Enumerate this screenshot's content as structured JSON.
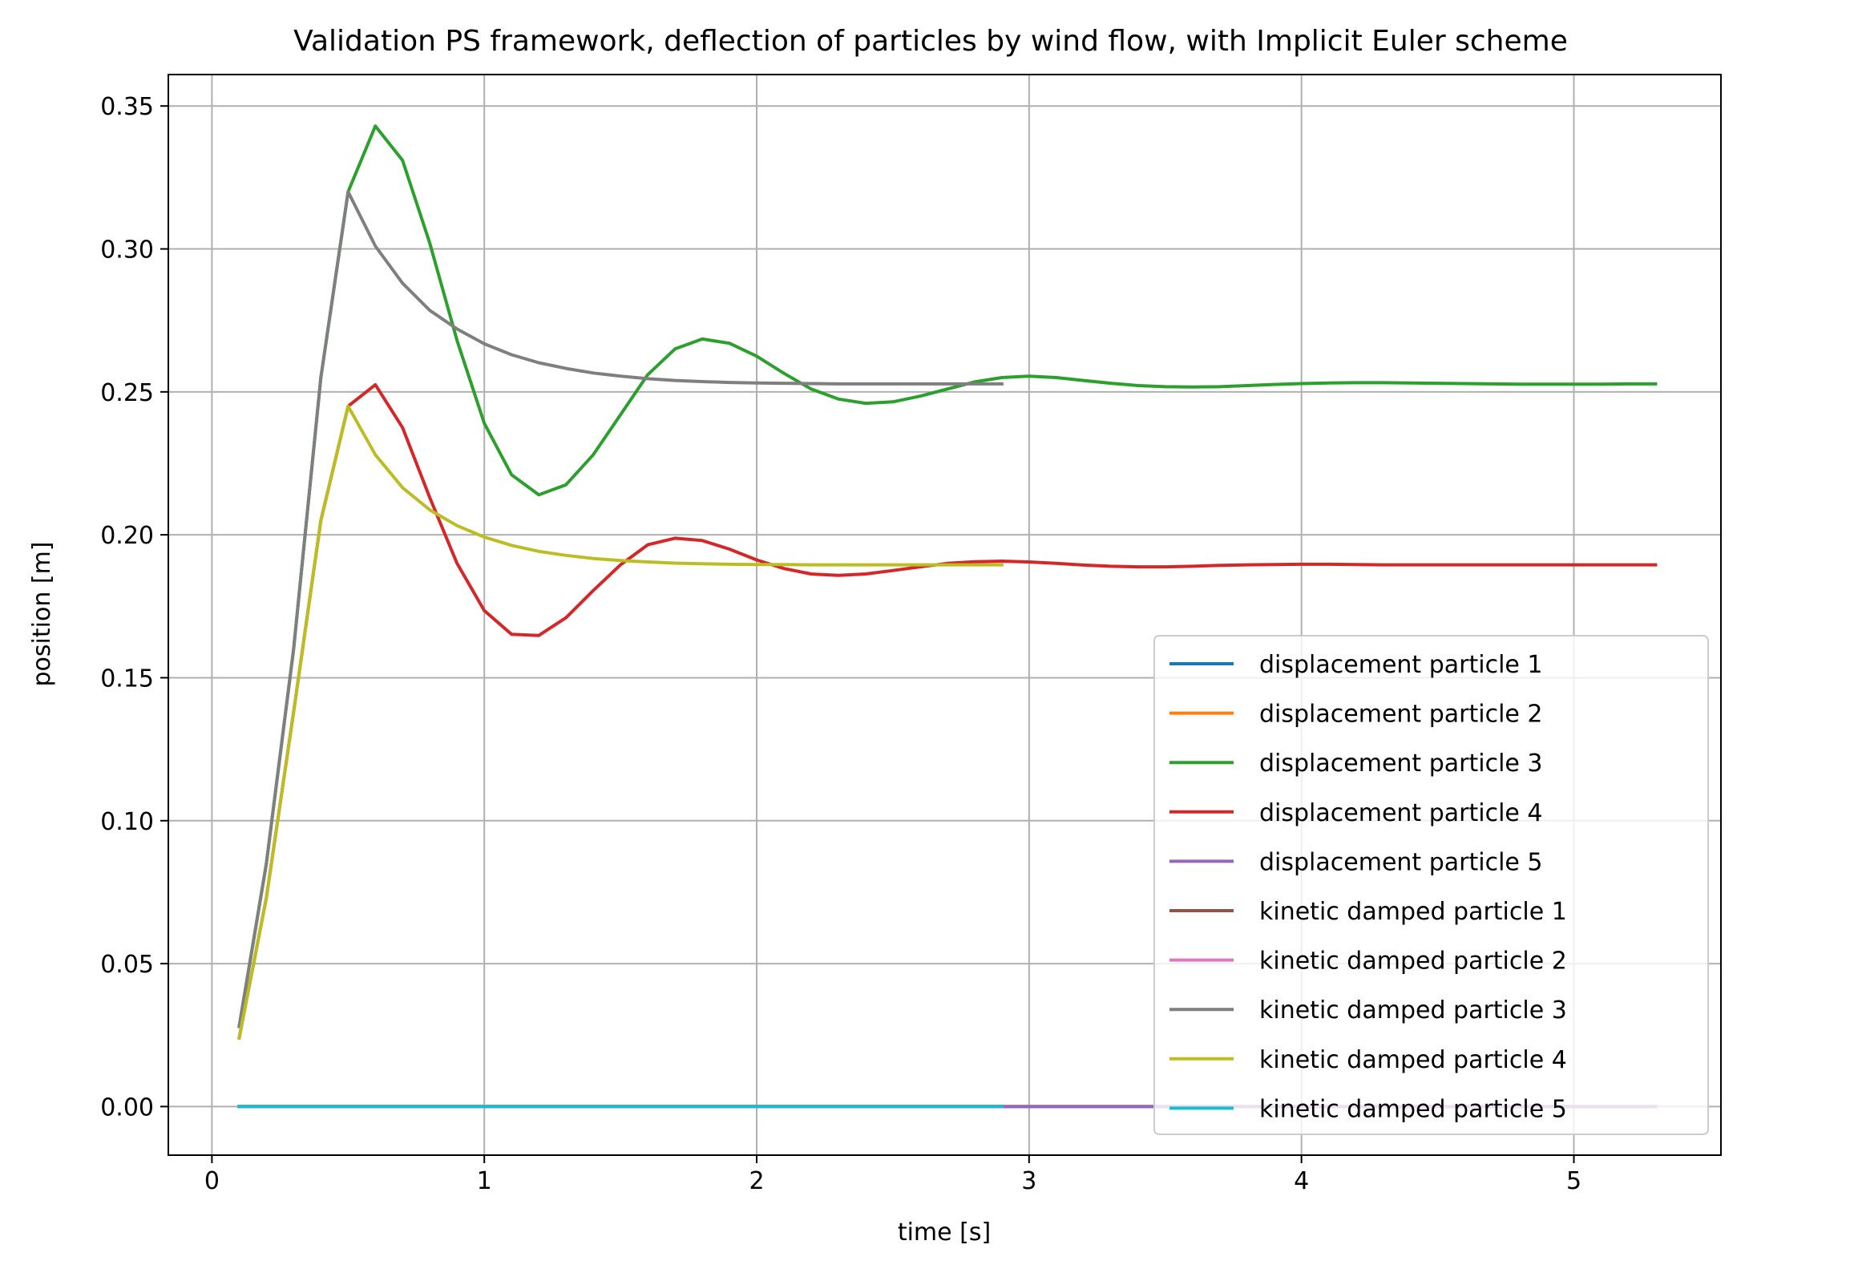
{
  "chart_data": {
    "type": "line",
    "title": "Validation PS framework, deflection of particles by wind flow, with Implicit Euler scheme",
    "xlabel": "time [s]",
    "ylabel": "position [m]",
    "xlim": [
      -0.16,
      5.54
    ],
    "ylim": [
      -0.017,
      0.361
    ],
    "xticks": [
      0,
      1,
      2,
      3,
      4,
      5
    ],
    "xtick_labels": [
      "0",
      "1",
      "2",
      "3",
      "4",
      "5"
    ],
    "yticks": [
      0.0,
      0.05,
      0.1,
      0.15,
      0.2,
      0.25,
      0.3,
      0.35
    ],
    "ytick_labels": [
      "0.00",
      "0.05",
      "0.10",
      "0.15",
      "0.20",
      "0.25",
      "0.30",
      "0.35"
    ],
    "grid": true,
    "legend_position": "lower-right",
    "series": [
      {
        "name": "displacement particle 1",
        "color": "#1f77b4",
        "x": [
          0.1,
          5.3
        ],
        "y": [
          0.0,
          0.0
        ]
      },
      {
        "name": "displacement particle 2",
        "color": "#ff7f0e",
        "x": [
          0.1,
          5.3
        ],
        "y": [
          0.0,
          0.0
        ]
      },
      {
        "name": "displacement particle 3",
        "color": "#2ca02c",
        "x": [
          0.1,
          0.2,
          0.3,
          0.4,
          0.5,
          0.6,
          0.7,
          0.8,
          0.9,
          1.0,
          1.1,
          1.2,
          1.3,
          1.4,
          1.5,
          1.6,
          1.7,
          1.8,
          1.9,
          2.0,
          2.1,
          2.2,
          2.3,
          2.4,
          2.5,
          2.6,
          2.7,
          2.8,
          2.9,
          3.0,
          3.1,
          3.2,
          3.3,
          3.4,
          3.5,
          3.6,
          3.7,
          3.8,
          3.9,
          4.0,
          4.1,
          4.2,
          4.3,
          4.4,
          4.5,
          4.6,
          4.7,
          4.8,
          4.9,
          5.0,
          5.1,
          5.2,
          5.3
        ],
        "y": [
          0.028,
          0.085,
          0.16,
          0.255,
          0.32,
          0.343,
          0.331,
          0.302,
          0.268,
          0.239,
          0.221,
          0.214,
          0.2175,
          0.228,
          0.242,
          0.256,
          0.265,
          0.2685,
          0.267,
          0.2625,
          0.2565,
          0.251,
          0.2475,
          0.246,
          0.2465,
          0.2485,
          0.251,
          0.2535,
          0.255,
          0.2555,
          0.255,
          0.254,
          0.253,
          0.2522,
          0.2518,
          0.2517,
          0.2518,
          0.2522,
          0.2526,
          0.2529,
          0.2531,
          0.2532,
          0.2532,
          0.2531,
          0.253,
          0.2529,
          0.2528,
          0.2527,
          0.2527,
          0.2527,
          0.2527,
          0.2528,
          0.2528
        ]
      },
      {
        "name": "displacement particle 4",
        "color": "#d62728",
        "x": [
          0.1,
          0.2,
          0.3,
          0.4,
          0.5,
          0.6,
          0.7,
          0.8,
          0.9,
          1.0,
          1.1,
          1.2,
          1.3,
          1.4,
          1.5,
          1.6,
          1.7,
          1.8,
          1.9,
          2.0,
          2.1,
          2.2,
          2.3,
          2.4,
          2.5,
          2.6,
          2.7,
          2.8,
          2.9,
          3.0,
          3.1,
          3.2,
          3.3,
          3.4,
          3.5,
          3.6,
          3.7,
          3.8,
          3.9,
          4.0,
          4.1,
          4.2,
          4.3,
          4.4,
          4.5,
          4.6,
          4.7,
          4.8,
          4.9,
          5.0,
          5.1,
          5.2,
          5.3
        ],
        "y": [
          0.024,
          0.073,
          0.138,
          0.205,
          0.245,
          0.2525,
          0.2375,
          0.213,
          0.19,
          0.1735,
          0.1652,
          0.1648,
          0.171,
          0.1805,
          0.1895,
          0.1965,
          0.1988,
          0.198,
          0.195,
          0.1912,
          0.1882,
          0.1863,
          0.1858,
          0.1863,
          0.1875,
          0.1888,
          0.19,
          0.1906,
          0.1908,
          0.1905,
          0.19,
          0.1894,
          0.189,
          0.1888,
          0.1888,
          0.189,
          0.1893,
          0.1895,
          0.1896,
          0.1897,
          0.1897,
          0.1896,
          0.1895,
          0.1895,
          0.1895,
          0.1895,
          0.1895,
          0.1895,
          0.1895,
          0.1895,
          0.1895,
          0.1895,
          0.1895
        ]
      },
      {
        "name": "displacement particle 5",
        "color": "#9467bd",
        "x": [
          0.1,
          5.3
        ],
        "y": [
          0.0,
          0.0
        ]
      },
      {
        "name": "kinetic damped particle 1",
        "color": "#8c564b",
        "x": [
          0.1,
          2.9
        ],
        "y": [
          0.0,
          0.0
        ]
      },
      {
        "name": "kinetic damped particle 2",
        "color": "#e377c2",
        "x": [
          0.1,
          2.9
        ],
        "y": [
          0.0,
          0.0
        ]
      },
      {
        "name": "kinetic damped particle 3",
        "color": "#7f7f7f",
        "x": [
          0.1,
          0.2,
          0.3,
          0.4,
          0.5,
          0.6,
          0.7,
          0.8,
          0.9,
          1.0,
          1.1,
          1.2,
          1.3,
          1.4,
          1.5,
          1.6,
          1.7,
          1.8,
          1.9,
          2.0,
          2.1,
          2.2,
          2.3,
          2.4,
          2.5,
          2.6,
          2.7,
          2.8,
          2.9
        ],
        "y": [
          0.028,
          0.085,
          0.16,
          0.255,
          0.32,
          0.301,
          0.288,
          0.2785,
          0.272,
          0.2668,
          0.263,
          0.2602,
          0.2582,
          0.2566,
          0.2555,
          0.2546,
          0.254,
          0.2536,
          0.2533,
          0.2531,
          0.253,
          0.2529,
          0.2528,
          0.2528,
          0.2528,
          0.2528,
          0.2528,
          0.2528,
          0.2528
        ]
      },
      {
        "name": "kinetic damped particle 4",
        "color": "#bcbd22",
        "x": [
          0.1,
          0.2,
          0.3,
          0.4,
          0.5,
          0.6,
          0.7,
          0.8,
          0.9,
          1.0,
          1.1,
          1.2,
          1.3,
          1.4,
          1.5,
          1.6,
          1.7,
          1.8,
          1.9,
          2.0,
          2.1,
          2.2,
          2.3,
          2.4,
          2.5,
          2.6,
          2.7,
          2.8,
          2.9
        ],
        "y": [
          0.024,
          0.073,
          0.138,
          0.205,
          0.245,
          0.228,
          0.2165,
          0.2087,
          0.2032,
          0.1992,
          0.1963,
          0.1942,
          0.1928,
          0.1917,
          0.191,
          0.1905,
          0.1901,
          0.1899,
          0.1897,
          0.1896,
          0.1896,
          0.1895,
          0.1895,
          0.1895,
          0.1895,
          0.1895,
          0.1895,
          0.1895,
          0.1895
        ]
      },
      {
        "name": "kinetic damped particle 5",
        "color": "#17becf",
        "x": [
          0.1,
          2.9
        ],
        "y": [
          0.0,
          0.0
        ]
      }
    ]
  }
}
